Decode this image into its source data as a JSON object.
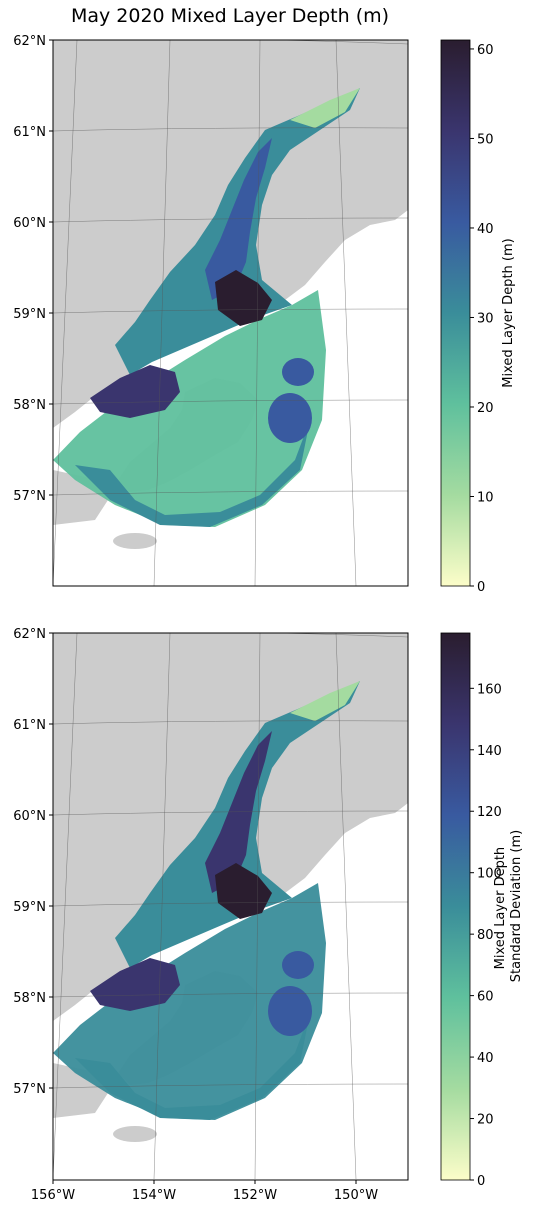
{
  "title": "May 2020 Mixed Layer Depth (m)",
  "colors": {
    "land": "#cccccc",
    "gridline": "#555555",
    "colormap": [
      "#fcfdc9",
      "#a4dba0",
      "#5fc09d",
      "#3a8d9a",
      "#395aa0",
      "#3a356e",
      "#2a1d2f"
    ]
  },
  "lat_labels": [
    "62°N",
    "61°N",
    "60°N",
    "59°N",
    "58°N",
    "57°N"
  ],
  "lon_labels": [
    "156°W",
    "154°W",
    "152°W",
    "150°W"
  ],
  "panels": [
    {
      "name": "mean",
      "colorbar_label_lines": [
        "Mixed Layer Depth (m)"
      ],
      "colorbar_max": 61,
      "colorbar_ticks": [
        "0",
        "10",
        "20",
        "30",
        "40",
        "50",
        "60"
      ]
    },
    {
      "name": "stddev",
      "colorbar_label_lines": [
        "Mixed Layer Depth",
        "Standard Deviation (m)"
      ],
      "colorbar_max": 178,
      "colorbar_ticks": [
        "0",
        "20",
        "40",
        "60",
        "80",
        "100",
        "120",
        "140",
        "160"
      ]
    }
  ]
}
